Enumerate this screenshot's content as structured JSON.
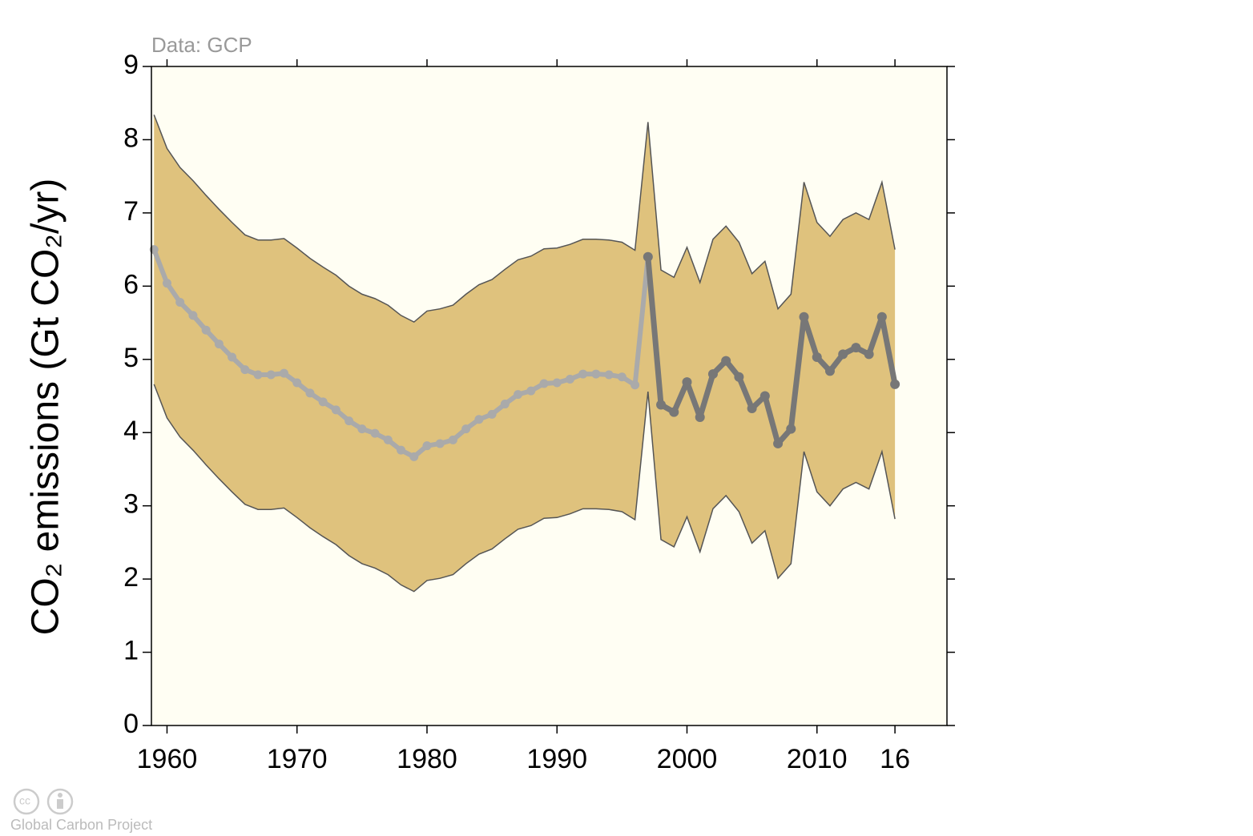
{
  "chart_data": {
    "type": "line",
    "annotation": "Data: GCP",
    "y_label": "CO₂ emissions (Gt CO₂/yr)",
    "credit": "Global Carbon Project",
    "x": [
      1959,
      1960,
      1961,
      1962,
      1963,
      1964,
      1965,
      1966,
      1967,
      1968,
      1969,
      1970,
      1971,
      1972,
      1973,
      1974,
      1975,
      1976,
      1977,
      1978,
      1979,
      1980,
      1981,
      1982,
      1983,
      1984,
      1985,
      1986,
      1987,
      1988,
      1989,
      1990,
      1991,
      1992,
      1993,
      1994,
      1995,
      1996,
      1997,
      1998,
      1999,
      2000,
      2001,
      2002,
      2003,
      2004,
      2005,
      2006,
      2007,
      2008,
      2009,
      2010,
      2011,
      2012,
      2013,
      2014,
      2015,
      2016
    ],
    "band": {
      "color": "#dfc27d",
      "edge_color": "#555555",
      "upper": [
        8.34,
        7.88,
        7.62,
        7.44,
        7.24,
        7.05,
        6.87,
        6.7,
        6.63,
        6.63,
        6.65,
        6.52,
        6.38,
        6.26,
        6.15,
        6.0,
        5.89,
        5.83,
        5.74,
        5.6,
        5.51,
        5.66,
        5.69,
        5.74,
        5.89,
        6.02,
        6.09,
        6.23,
        6.36,
        6.41,
        6.51,
        6.52,
        6.57,
        6.64,
        6.64,
        6.63,
        6.6,
        6.49,
        8.24,
        6.22,
        6.12,
        6.53,
        6.05,
        6.64,
        6.82,
        6.6,
        6.17,
        6.34,
        5.69,
        5.89,
        7.42,
        6.87,
        6.68,
        6.91,
        7.0,
        6.91,
        7.42,
        6.5
      ],
      "lower": [
        4.66,
        4.2,
        3.94,
        3.76,
        3.56,
        3.37,
        3.19,
        3.02,
        2.95,
        2.95,
        2.97,
        2.84,
        2.7,
        2.58,
        2.47,
        2.32,
        2.21,
        2.15,
        2.06,
        1.92,
        1.83,
        1.98,
        2.01,
        2.06,
        2.21,
        2.34,
        2.41,
        2.55,
        2.68,
        2.73,
        2.83,
        2.84,
        2.89,
        2.96,
        2.96,
        2.95,
        2.92,
        2.81,
        4.56,
        2.54,
        2.44,
        2.85,
        2.37,
        2.96,
        3.14,
        2.92,
        2.49,
        2.66,
        2.01,
        2.21,
        3.74,
        3.19,
        3.0,
        3.23,
        3.32,
        3.23,
        3.74,
        2.82
      ]
    },
    "series": [
      {
        "color": "#aaaaaa",
        "values": [
          6.5,
          6.04,
          5.78,
          5.6,
          5.4,
          5.21,
          5.03,
          4.86,
          4.79,
          4.79,
          4.81,
          4.68,
          4.54,
          4.42,
          4.31,
          4.16,
          4.05,
          3.99,
          3.9,
          3.76,
          3.67,
          3.82,
          3.85,
          3.9,
          4.05,
          4.18,
          4.25,
          4.39,
          4.52,
          4.57,
          4.67,
          4.68,
          4.73,
          4.8,
          4.8,
          4.79,
          4.76,
          4.65,
          6.4,
          null,
          null,
          null,
          null,
          null,
          null,
          null,
          null,
          null,
          null,
          null,
          null,
          null,
          null,
          null,
          null,
          null,
          null,
          null
        ]
      },
      {
        "color": "#777777",
        "values": [
          null,
          null,
          null,
          null,
          null,
          null,
          null,
          null,
          null,
          null,
          null,
          null,
          null,
          null,
          null,
          null,
          null,
          null,
          null,
          null,
          null,
          null,
          null,
          null,
          null,
          null,
          null,
          null,
          null,
          null,
          null,
          null,
          null,
          null,
          null,
          null,
          null,
          null,
          6.4,
          4.38,
          4.28,
          4.69,
          4.21,
          4.8,
          4.98,
          4.76,
          4.33,
          4.5,
          3.85,
          4.05,
          5.58,
          5.03,
          4.84,
          5.07,
          5.16,
          5.07,
          5.58,
          4.66
        ]
      }
    ],
    "xlim": [
      1958.8,
      2020
    ],
    "xticks": [
      1960,
      1970,
      1980,
      1990,
      2000,
      2010,
      {
        "value": 2016,
        "label": "16"
      }
    ],
    "ylim": [
      0,
      9
    ],
    "yticks": [
      0,
      1,
      2,
      3,
      4,
      5,
      6,
      7,
      8,
      9
    ],
    "background": "#fffef3"
  }
}
